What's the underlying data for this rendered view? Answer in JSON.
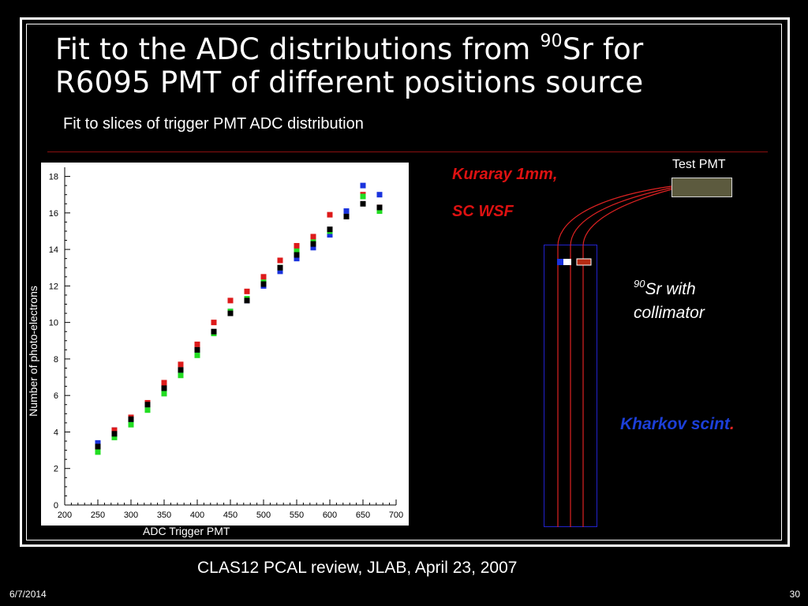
{
  "slide": {
    "title_line1_pre": "Fit to the ADC distributions from ",
    "title_sup": "90",
    "title_line1_post": "Sr for",
    "title_line2": "R6095  PMT of different positions source",
    "subtitle": "Fit to slices of trigger PMT ADC distribution",
    "footer": "CLAS12  PCAL review, JLAB, April 23, 2007",
    "date": "6/7/2014",
    "page_number": "30"
  },
  "diagram": {
    "kuraray_line1": "Kuraray 1mm,",
    "kuraray_line2": "SC WSF",
    "test_pmt": "Test PMT",
    "sr_sup": "90",
    "sr_line1": "Sr with",
    "sr_line2": "collimator",
    "kharkov": "Kharkov scint",
    "kharkov_dot": ".",
    "colors": {
      "fiber": "#dd2222",
      "scint_border": "#2222cc",
      "pmt": "#5c5a3e"
    }
  },
  "chart_data": {
    "type": "scatter",
    "xlabel": "ADC Trigger PMT",
    "ylabel": "Number of photo-electrons",
    "xlim": [
      200,
      700
    ],
    "ylim": [
      0,
      18.5
    ],
    "xticks": [
      "200",
      "250",
      "300",
      "350",
      "400",
      "450",
      "500",
      "550",
      "600",
      "650",
      "700"
    ],
    "yticks": [
      "0",
      "2",
      "4",
      "6",
      "8",
      "10",
      "12",
      "14",
      "16",
      "18"
    ],
    "series": [
      {
        "color": "#1a33dd",
        "points": [
          [
            250,
            3.4
          ],
          [
            275,
            4.1
          ],
          [
            300,
            4.6
          ],
          [
            325,
            5.5
          ],
          [
            350,
            6.3
          ],
          [
            375,
            7.3
          ],
          [
            400,
            8.4
          ],
          [
            425,
            9.4
          ],
          [
            450,
            10.6
          ],
          [
            475,
            11.2
          ],
          [
            500,
            12.0
          ],
          [
            525,
            12.8
          ],
          [
            550,
            13.5
          ],
          [
            575,
            14.1
          ],
          [
            600,
            14.8
          ],
          [
            625,
            16.1
          ],
          [
            650,
            17.5
          ],
          [
            675,
            17.0
          ]
        ]
      },
      {
        "color": "#dd1a1a",
        "points": [
          [
            250,
            3.2
          ],
          [
            275,
            4.1
          ],
          [
            300,
            4.8
          ],
          [
            325,
            5.6
          ],
          [
            350,
            6.7
          ],
          [
            375,
            7.7
          ],
          [
            400,
            8.8
          ],
          [
            425,
            10.0
          ],
          [
            450,
            11.2
          ],
          [
            475,
            11.7
          ],
          [
            500,
            12.5
          ],
          [
            525,
            13.4
          ],
          [
            550,
            14.2
          ],
          [
            575,
            14.7
          ],
          [
            600,
            15.9
          ],
          [
            625,
            15.8
          ],
          [
            650,
            17.0
          ],
          [
            675,
            16.3
          ]
        ]
      },
      {
        "color": "#22dd22",
        "points": [
          [
            250,
            2.9
          ],
          [
            275,
            3.7
          ],
          [
            300,
            4.4
          ],
          [
            325,
            5.2
          ],
          [
            350,
            6.1
          ],
          [
            375,
            7.1
          ],
          [
            400,
            8.2
          ],
          [
            425,
            9.4
          ],
          [
            450,
            10.6
          ],
          [
            475,
            11.3
          ],
          [
            500,
            12.2
          ],
          [
            525,
            13.0
          ],
          [
            550,
            13.9
          ],
          [
            575,
            14.4
          ],
          [
            600,
            15.0
          ],
          [
            625,
            15.8
          ],
          [
            650,
            16.9
          ],
          [
            675,
            16.1
          ]
        ]
      },
      {
        "color": "#000000",
        "points": [
          [
            250,
            3.2
          ],
          [
            275,
            3.9
          ],
          [
            300,
            4.7
          ],
          [
            325,
            5.5
          ],
          [
            350,
            6.4
          ],
          [
            375,
            7.4
          ],
          [
            400,
            8.5
          ],
          [
            425,
            9.5
          ],
          [
            450,
            10.5
          ],
          [
            475,
            11.2
          ],
          [
            500,
            12.1
          ],
          [
            525,
            13.0
          ],
          [
            550,
            13.7
          ],
          [
            575,
            14.3
          ],
          [
            600,
            15.1
          ],
          [
            625,
            15.8
          ],
          [
            650,
            16.5
          ],
          [
            675,
            16.3
          ]
        ]
      }
    ]
  }
}
